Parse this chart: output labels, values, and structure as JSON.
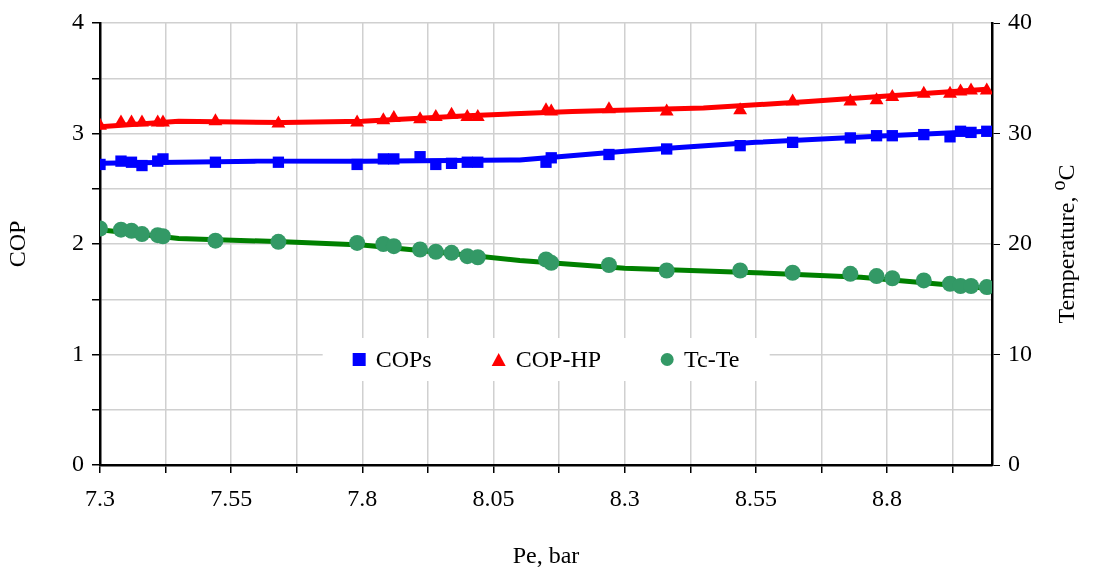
{
  "chart_data": {
    "type": "scatter",
    "xlabel": "Pe, bar",
    "ylabel": "COP",
    "y2label": "Temperature, $^{o}$C",
    "x": [
      7.3,
      7.34,
      7.36,
      7.38,
      7.41,
      7.42,
      7.52,
      7.64,
      7.79,
      7.84,
      7.86,
      7.91,
      7.94,
      7.97,
      8.0,
      8.02,
      8.15,
      8.16,
      8.27,
      8.38,
      8.52,
      8.62,
      8.73,
      8.78,
      8.81,
      8.87,
      8.92,
      8.94,
      8.96,
      8.99
    ],
    "series": [
      {
        "name": "COPs",
        "type": "scatter",
        "marker": "square",
        "color": "#0000ff",
        "values": [
          2.72,
          2.75,
          2.74,
          2.71,
          2.75,
          2.77,
          2.74,
          2.74,
          2.72,
          2.77,
          2.77,
          2.79,
          2.72,
          2.73,
          2.74,
          2.74,
          2.74,
          2.78,
          2.81,
          2.86,
          2.89,
          2.92,
          2.96,
          2.98,
          2.98,
          2.99,
          2.97,
          3.02,
          3.01,
          3.02
        ]
      },
      {
        "name": "COP-HP",
        "type": "scatter",
        "marker": "triangle",
        "color": "#ff0000",
        "values": [
          3.07,
          3.1,
          3.1,
          3.1,
          3.1,
          3.1,
          3.11,
          3.09,
          3.1,
          3.12,
          3.14,
          3.13,
          3.15,
          3.17,
          3.15,
          3.15,
          3.21,
          3.2,
          3.22,
          3.2,
          3.21,
          3.29,
          3.29,
          3.3,
          3.33,
          3.36,
          3.36,
          3.38,
          3.39,
          3.39
        ]
      },
      {
        "name": "Tc-Te",
        "type": "scatter",
        "marker": "circle",
        "axis": "y2",
        "color": "#339966",
        "values": [
          21.4,
          21.3,
          21.2,
          20.9,
          20.8,
          20.7,
          20.3,
          20.2,
          20.1,
          20.0,
          19.8,
          19.5,
          19.3,
          19.2,
          18.9,
          18.8,
          18.6,
          18.3,
          18.1,
          17.6,
          17.6,
          17.4,
          17.3,
          17.1,
          16.9,
          16.7,
          16.4,
          16.2,
          16.2,
          16.1
        ]
      },
      {
        "type": "line",
        "marker": "none",
        "color": "#0000ff",
        "x": [
          7.3,
          7.6,
          7.8,
          8.1,
          8.3,
          8.55,
          8.8,
          8.99
        ],
        "values": [
          2.73,
          2.75,
          2.75,
          2.76,
          2.84,
          2.92,
          2.98,
          3.02
        ]
      },
      {
        "type": "line",
        "marker": "none",
        "color": "#ff0000",
        "x": [
          7.3,
          7.45,
          7.65,
          7.8,
          8.0,
          8.2,
          8.45,
          8.65,
          8.8,
          8.99
        ],
        "values": [
          3.06,
          3.11,
          3.1,
          3.11,
          3.16,
          3.2,
          3.23,
          3.29,
          3.34,
          3.4
        ]
      },
      {
        "type": "line",
        "marker": "none",
        "axis": "y2",
        "color": "#008000",
        "x": [
          7.3,
          7.45,
          7.65,
          7.8,
          8.0,
          8.1,
          8.3,
          8.55,
          8.75,
          8.99
        ],
        "values": [
          21.3,
          20.5,
          20.2,
          19.9,
          19.0,
          18.5,
          17.8,
          17.4,
          17.0,
          16.0
        ]
      }
    ],
    "xlim": [
      7.3,
      9.0
    ],
    "xticks": [
      7.3,
      {
        "value": 7.425,
        "label": null
      },
      7.55,
      {
        "value": 7.675,
        "label": null
      },
      7.8,
      {
        "value": 7.925,
        "label": null
      },
      8.05,
      {
        "value": 8.175,
        "label": null
      },
      8.3,
      {
        "value": 8.425,
        "label": null
      },
      8.55,
      {
        "value": 8.675,
        "label": null
      },
      8.8,
      {
        "value": 8.925,
        "label": null
      }
    ],
    "ylim": [
      0,
      4
    ],
    "yticks": [
      0,
      {
        "value": 0.5,
        "label": null
      },
      1,
      {
        "value": 1.5,
        "label": null
      },
      2,
      {
        "value": 2.5,
        "label": null
      },
      3,
      {
        "value": 3.5,
        "label": null
      },
      4
    ],
    "y2lim": [
      0,
      40
    ],
    "y2ticks": [
      0,
      10,
      20,
      30,
      40
    ],
    "grid": true,
    "legend": "bottom"
  }
}
